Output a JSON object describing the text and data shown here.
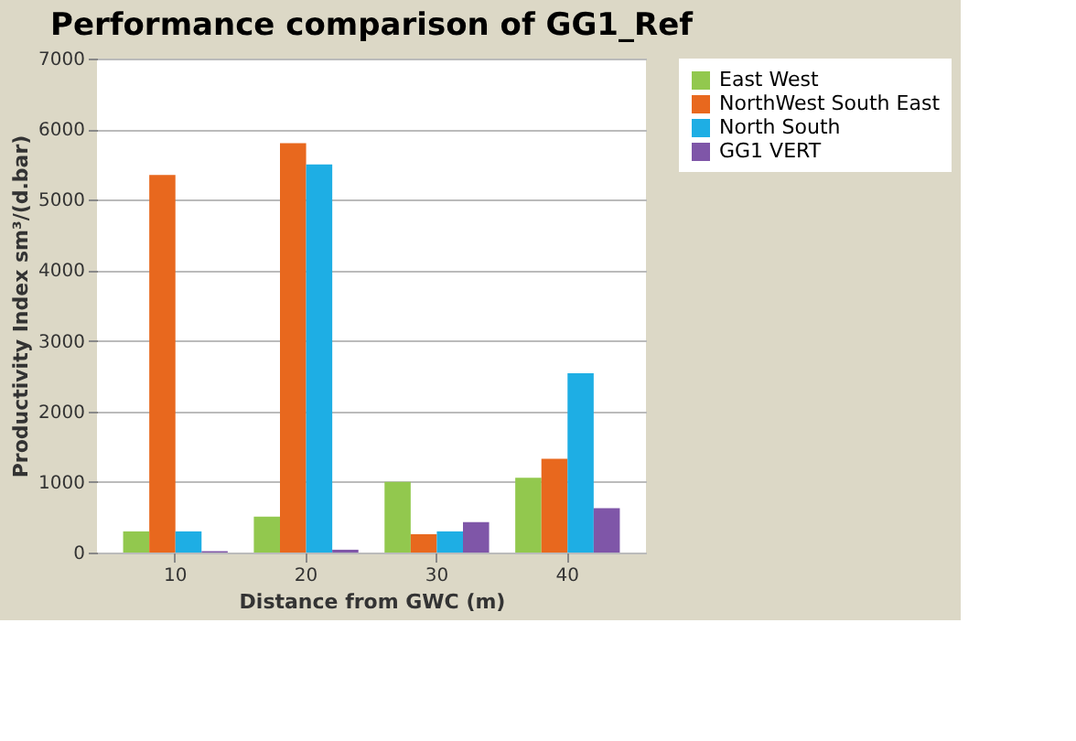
{
  "chart_data": {
    "type": "bar",
    "title": "Performance comparison of GG1_Ref",
    "xlabel": "Distance from GWC (m)",
    "ylabel": "Productivity Index sm³/(d.bar)",
    "categories": [
      "10",
      "20",
      "30",
      "40"
    ],
    "series": [
      {
        "name": "East West",
        "color": "#92c84e",
        "values": [
          300,
          510,
          1000,
          1060
        ]
      },
      {
        "name": "NorthWest South East",
        "color": "#e8681e",
        "values": [
          5350,
          5800,
          260,
          1330
        ]
      },
      {
        "name": "North South",
        "color": "#1eaee4",
        "values": [
          300,
          5500,
          300,
          2540
        ]
      },
      {
        "name": "GG1 VERT",
        "color": "#7f56a8",
        "values": [
          20,
          40,
          430,
          630
        ]
      }
    ],
    "ylim": [
      0,
      7000
    ],
    "yticks": [
      0,
      1000,
      2000,
      3000,
      4000,
      5000,
      6000,
      7000
    ],
    "grid": "y",
    "legend": "right"
  }
}
